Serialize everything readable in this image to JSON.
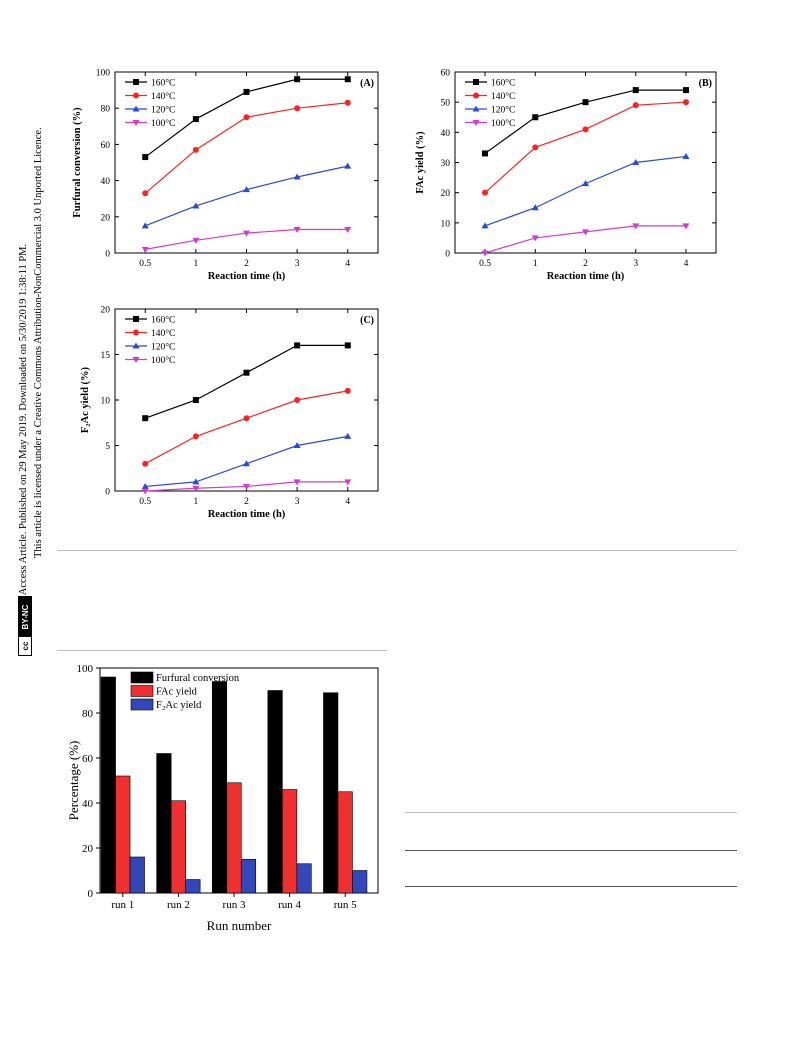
{
  "sidebar": {
    "line1": "Open Access Article. Published on 29 May 2019. Downloaded on 5/30/2019 1:38:11 PM.",
    "line2": "This article is licensed under a Creative Commons Attribution-NonCommercial 3.0 Unported Licence.",
    "badge_cc": "cc",
    "badge_by": "BY-NC"
  },
  "chart_data": [
    {
      "type": "line",
      "panel_label": "(A)",
      "xlabel": "Reaction time (h)",
      "ylabel": "Furfural conversion (%)",
      "categories": [
        "0.5",
        "1",
        "2",
        "3",
        "4"
      ],
      "ylim": [
        0,
        100
      ],
      "yticks": [
        "0",
        "20",
        "40",
        "60",
        "80",
        "100"
      ],
      "legend_position": "top-left",
      "series": [
        {
          "name": "160°C",
          "color": "#000000",
          "marker": "square",
          "values": [
            53,
            74,
            89,
            96,
            96
          ]
        },
        {
          "name": "140°C",
          "color": "#ff2020",
          "marker": "circle",
          "values": [
            33,
            57,
            75,
            80,
            83
          ]
        },
        {
          "name": "120°C",
          "color": "#2a49d6",
          "marker": "triangle-up",
          "values": [
            15,
            26,
            35,
            42,
            48
          ]
        },
        {
          "name": "100°C",
          "color": "#d23ad2",
          "marker": "triangle-down",
          "values": [
            2,
            7,
            11,
            13,
            13
          ]
        }
      ]
    },
    {
      "type": "line",
      "panel_label": "(B)",
      "xlabel": "Reaction time (h)",
      "ylabel": "FAc yield (%)",
      "categories": [
        "0.5",
        "1",
        "2",
        "3",
        "4"
      ],
      "ylim": [
        0,
        60
      ],
      "yticks": [
        "0",
        "10",
        "20",
        "30",
        "40",
        "50",
        "60"
      ],
      "legend_position": "top-left",
      "series": [
        {
          "name": "160°C",
          "color": "#000000",
          "marker": "square",
          "values": [
            33,
            45,
            50,
            54,
            54
          ]
        },
        {
          "name": "140°C",
          "color": "#ff2020",
          "marker": "circle",
          "values": [
            20,
            35,
            41,
            49,
            50
          ]
        },
        {
          "name": "120°C",
          "color": "#2a49d6",
          "marker": "triangle-up",
          "values": [
            9,
            15,
            23,
            30,
            32
          ]
        },
        {
          "name": "100°C",
          "color": "#d23ad2",
          "marker": "triangle-down",
          "values": [
            0,
            5,
            7,
            9,
            9
          ]
        }
      ]
    },
    {
      "type": "line",
      "panel_label": "(C)",
      "xlabel": "Reaction time (h)",
      "ylabel": "F₂Ac yield (%)",
      "categories": [
        "0.5",
        "1",
        "2",
        "3",
        "4"
      ],
      "ylim": [
        0,
        20
      ],
      "yticks": [
        "0",
        "5",
        "10",
        "15",
        "20"
      ],
      "legend_position": "top-left",
      "series": [
        {
          "name": "160°C",
          "color": "#000000",
          "marker": "square",
          "values": [
            8,
            10,
            13,
            16,
            16
          ]
        },
        {
          "name": "140°C",
          "color": "#ff2020",
          "marker": "circle",
          "values": [
            3,
            6,
            8,
            10,
            11
          ]
        },
        {
          "name": "120°C",
          "color": "#2a49d6",
          "marker": "triangle-up",
          "values": [
            0.5,
            1,
            3,
            5,
            6
          ]
        },
        {
          "name": "100°C",
          "color": "#d23ad2",
          "marker": "triangle-down",
          "values": [
            0,
            0.3,
            0.5,
            1,
            1
          ]
        }
      ]
    },
    {
      "type": "bar",
      "xlabel": "Run number",
      "ylabel": "Percentage (%)",
      "categories": [
        "run 1",
        "run 2",
        "run 3",
        "run 4",
        "run 5"
      ],
      "ylim": [
        0,
        100
      ],
      "yticks": [
        "0",
        "20",
        "40",
        "60",
        "80",
        "100"
      ],
      "legend_position": "top-left",
      "series": [
        {
          "name": "Furfural conversion",
          "color": "#000000",
          "values": [
            96,
            62,
            94,
            90,
            89
          ]
        },
        {
          "name": "FAc yield",
          "color": "#ee3030",
          "values": [
            52,
            41,
            49,
            46,
            45
          ]
        },
        {
          "name": "F₂Ac yield",
          "color": "#3347b8",
          "values": [
            16,
            6,
            15,
            13,
            10
          ]
        }
      ]
    }
  ]
}
